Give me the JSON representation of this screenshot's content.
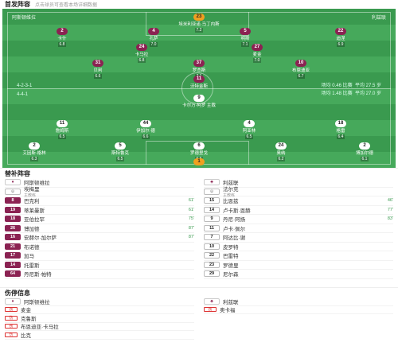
{
  "header": {
    "title": "首发阵容",
    "subtitle": "点击球员可查看本场详细数据"
  },
  "pitch": {
    "home_team": "阿斯顿维拉",
    "home_formation": "4-2-3-1",
    "home_stat_a": "场均 0.46 比赛",
    "home_stat_b": "平均 27.5 岁",
    "away_team": "利兹联",
    "away_formation": "4-4-1",
    "away_stat_a": "场均 1.48 比赛",
    "away_stat_b": "平均 27.0 岁",
    "center_label": "卡尔万·阿罗 主裁",
    "center_num": "9",
    "players": [
      {
        "num": "23",
        "name": "埃米利亚诺·马丁内斯",
        "rating": "7.2",
        "cls": "gk"
      },
      {
        "num": "2",
        "name": "卡什",
        "rating": "6.8",
        "cls": "home"
      },
      {
        "num": "4",
        "name": "孔萨",
        "rating": "7.0",
        "cls": "home"
      },
      {
        "num": "5",
        "name": "明斯",
        "rating": "7.1",
        "cls": "home"
      },
      {
        "num": "22",
        "name": "迪涅",
        "rating": "6.9",
        "cls": "home"
      },
      {
        "num": "24",
        "name": "卡马拉",
        "rating": "6.8",
        "cls": "home"
      },
      {
        "num": "27",
        "name": "麦金",
        "rating": "7.0",
        "cls": "home"
      },
      {
        "num": "31",
        "name": "贝利",
        "rating": "6.6",
        "cls": "home"
      },
      {
        "num": "37",
        "name": "罗杰斯",
        "rating": "7.1",
        "cls": "home"
      },
      {
        "num": "10",
        "name": "布恩迪亚",
        "rating": "6.7",
        "cls": "home"
      },
      {
        "num": "11",
        "name": "沃特金斯",
        "rating": "7.4",
        "cls": "home"
      },
      {
        "num": "11",
        "name": "詹姆斯",
        "rating": "6.5",
        "cls": "away"
      },
      {
        "num": "44",
        "name": "伊加尔·德",
        "rating": "6.6",
        "cls": "away"
      },
      {
        "num": "4",
        "name": "阿亚林",
        "rating": "6.5",
        "cls": "away"
      },
      {
        "num": "18",
        "name": "格雷",
        "rating": "6.4",
        "cls": "away"
      },
      {
        "num": "2",
        "name": "艾因斯·格林",
        "rating": "6.3",
        "cls": "away"
      },
      {
        "num": "5",
        "name": "斯特鲁克",
        "rating": "6.5",
        "cls": "away"
      },
      {
        "num": "6",
        "name": "罗德里戈",
        "rating": "6.6",
        "cls": "away"
      },
      {
        "num": "24",
        "name": "奥纳",
        "rating": "6.2",
        "cls": "away"
      },
      {
        "num": "2",
        "name": "博加尔德",
        "rating": "6.1",
        "cls": "away"
      },
      {
        "num": "1",
        "name": "佩里",
        "rating": "6.9",
        "cls": "gk"
      }
    ]
  },
  "subs": {
    "title": "替补阵容",
    "home_coach": "阿斯顿维拉",
    "home_coach_name": "埃梅里",
    "home_coach_role": "主教练",
    "away_coach": "利兹联",
    "away_coach_name": "法尔克",
    "away_coach_role": "主教练",
    "home": [
      {
        "num": "8",
        "name": "巴克利",
        "sub": "后卫",
        "evt": "61'"
      },
      {
        "num": "19",
        "name": "蒂莱曼斯",
        "sub": "中场",
        "evt": "61'"
      },
      {
        "num": "18",
        "name": "亚伯拉罕",
        "sub": "前锋",
        "evt": "75'"
      },
      {
        "num": "26",
        "name": "博加德",
        "sub": "中场",
        "evt": "87'"
      },
      {
        "num": "16",
        "name": "安赫尔·加尔萨",
        "sub": "后卫",
        "evt": "87'"
      },
      {
        "num": "21",
        "name": "布诺德",
        "sub": "前锋",
        "evt": ""
      },
      {
        "num": "17",
        "name": "加马",
        "sub": "前锋",
        "evt": ""
      },
      {
        "num": "14",
        "name": "托雷斯",
        "sub": "后卫",
        "evt": ""
      },
      {
        "num": "64",
        "name": "丹尼斯·帕特",
        "sub": "门将",
        "evt": ""
      }
    ],
    "away": [
      {
        "num": "15",
        "name": "比恩兹",
        "sub": "后卫",
        "evt": "46'"
      },
      {
        "num": "14",
        "name": "卢卡斯·恩赫",
        "sub": "中场",
        "evt": "77'"
      },
      {
        "num": "9",
        "name": "丹尼·阿扬",
        "sub": "前锋",
        "evt": "83'"
      },
      {
        "num": "11",
        "name": "卢卡·佩尔",
        "sub": "前锋",
        "evt": ""
      },
      {
        "num": "7",
        "name": "阿达比·谢",
        "sub": "中场",
        "evt": ""
      },
      {
        "num": "10",
        "name": "皮罗特",
        "sub": "中场",
        "evt": ""
      },
      {
        "num": "22",
        "name": "巴雷特",
        "sub": "中场",
        "evt": ""
      },
      {
        "num": "23",
        "name": "罗德里",
        "sub": "门将",
        "evt": ""
      },
      {
        "num": "29",
        "name": "尼尔森",
        "sub": "后卫",
        "evt": ""
      }
    ]
  },
  "injuries": {
    "title": "伤停信息",
    "home_team": "阿斯顿维拉",
    "away_team": "利兹联",
    "home": [
      {
        "name": "麦金",
        "tag": "伤"
      },
      {
        "name": "克鲁斯",
        "tag": "伤"
      },
      {
        "name": "布恩迪亚·卡马拉",
        "tag": "伤"
      },
      {
        "name": "比克",
        "tag": "伤"
      }
    ],
    "away": [
      {
        "name": "奥卡福",
        "tag": "伤"
      }
    ]
  }
}
